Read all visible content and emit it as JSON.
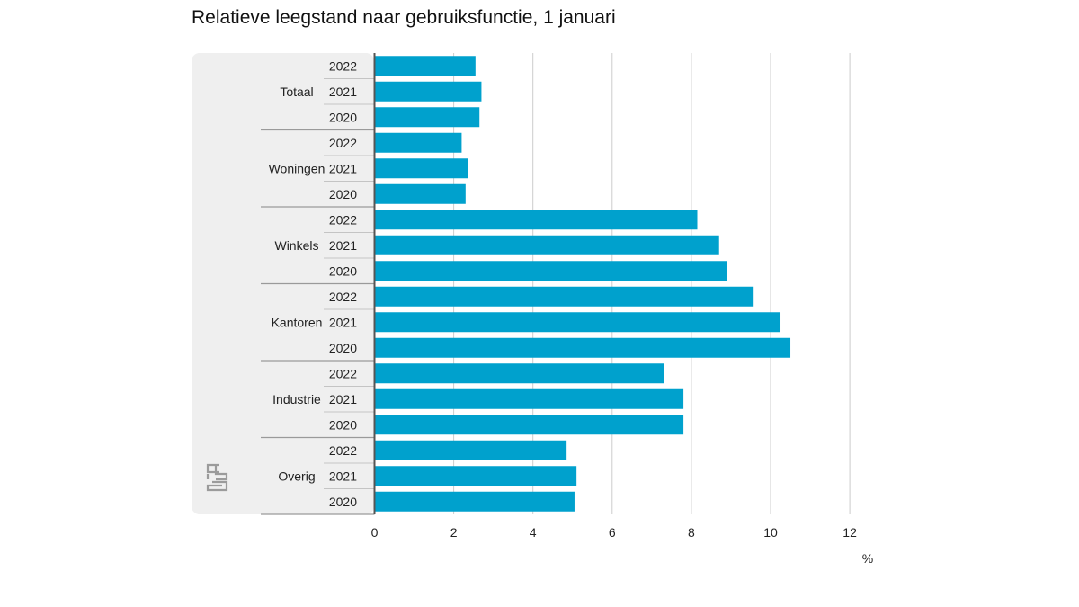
{
  "chart_data": {
    "type": "bar",
    "orientation": "horizontal",
    "title": "Relatieve leegstand naar gebruiksfunctie, 1 januari",
    "xlabel": "%",
    "ylabel": "",
    "xlim": [
      0,
      12
    ],
    "x_ticks": [
      0,
      2,
      4,
      6,
      8,
      10,
      12
    ],
    "grid": "vertical",
    "legend": "none",
    "bar_color": "#00a1cd",
    "groups": [
      {
        "name": "Totaal",
        "years": [
          "2022",
          "2021",
          "2020"
        ],
        "values": [
          2.55,
          2.7,
          2.65
        ]
      },
      {
        "name": "Woningen",
        "years": [
          "2022",
          "2021",
          "2020"
        ],
        "values": [
          2.2,
          2.35,
          2.3
        ]
      },
      {
        "name": "Winkels",
        "years": [
          "2022",
          "2021",
          "2020"
        ],
        "values": [
          8.15,
          8.7,
          8.9
        ]
      },
      {
        "name": "Kantoren",
        "years": [
          "2022",
          "2021",
          "2020"
        ],
        "values": [
          9.55,
          10.25,
          10.5
        ]
      },
      {
        "name": "Industrie",
        "years": [
          "2022",
          "2021",
          "2020"
        ],
        "values": [
          7.3,
          7.8,
          7.8
        ]
      },
      {
        "name": "Overig",
        "years": [
          "2022",
          "2021",
          "2020"
        ],
        "values": [
          4.85,
          5.1,
          5.05
        ]
      }
    ]
  },
  "logo": {
    "name": "cbs-logo",
    "text": "cbs"
  },
  "colors": {
    "panel": "#efefef",
    "grid": "#cccccc",
    "axis": "#555555",
    "divider": "#9a9a9a"
  }
}
